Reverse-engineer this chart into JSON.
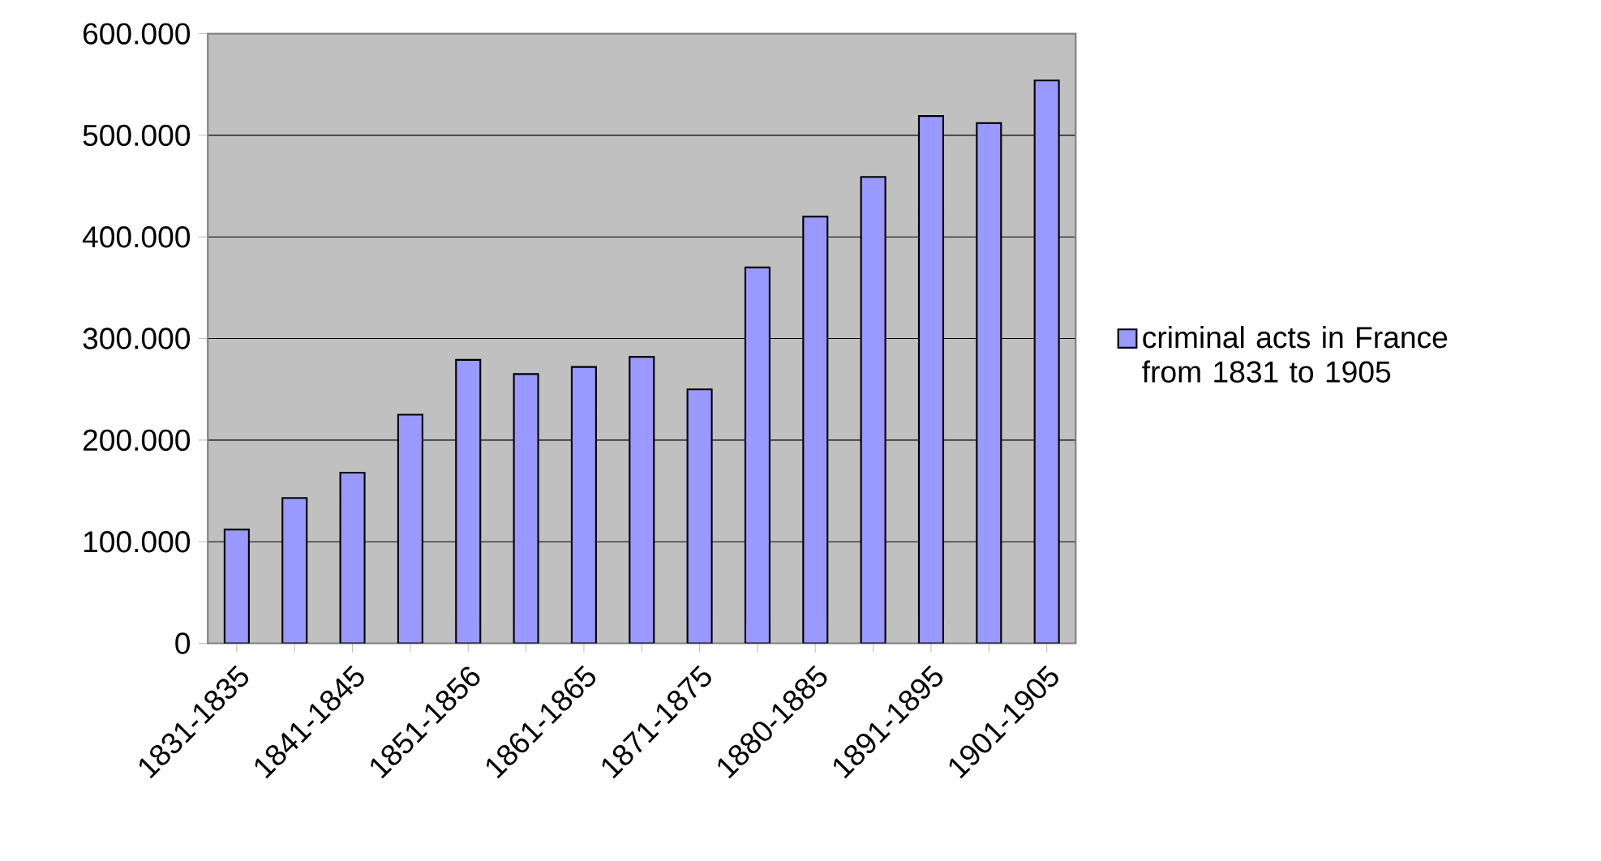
{
  "chart_data": {
    "type": "bar",
    "categories": [
      "1831-1835",
      null,
      "1841-1845",
      null,
      "1851-1856",
      null,
      "1861-1865",
      null,
      "1871-1875",
      null,
      "1880-1885",
      null,
      "1891-1895",
      null,
      "1901-1905"
    ],
    "series": [
      {
        "name": "criminal acts in France from 1831 to 1905",
        "color": "#9999ff",
        "values": [
          112000,
          143000,
          168000,
          225000,
          279000,
          265000,
          272000,
          282000,
          250000,
          370000,
          420000,
          459000,
          519000,
          512000,
          554000
        ]
      }
    ],
    "ylim": [
      0,
      600000
    ],
    "yticks": [
      0,
      {
        "value": 100000,
        "label": "100.000"
      },
      {
        "value": 200000,
        "label": "200.000"
      },
      {
        "value": 300000,
        "label": "300.000"
      },
      {
        "value": 400000,
        "label": "400.000"
      },
      {
        "value": 500000,
        "label": "500.000"
      },
      {
        "value": 600000,
        "label": "600.000"
      }
    ],
    "grid": "y",
    "legend": "right"
  }
}
